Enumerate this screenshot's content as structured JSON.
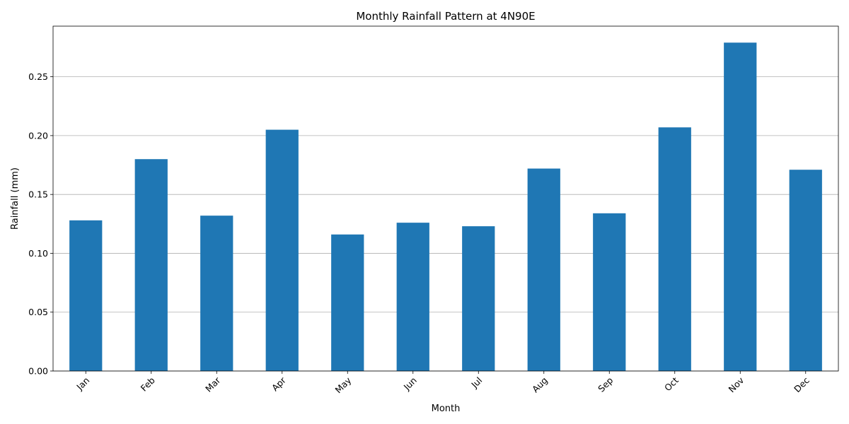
{
  "chart_data": {
    "type": "bar",
    "title": "Monthly Rainfall Pattern at 4N90E",
    "xlabel": "Month",
    "ylabel": "Rainfall (mm)",
    "categories": [
      "Jan",
      "Feb",
      "Mar",
      "Apr",
      "May",
      "Jun",
      "Jul",
      "Aug",
      "Sep",
      "Oct",
      "Nov",
      "Dec"
    ],
    "values": [
      0.128,
      0.18,
      0.132,
      0.205,
      0.116,
      0.126,
      0.123,
      0.172,
      0.134,
      0.207,
      0.279,
      0.171
    ],
    "ylim": [
      0,
      0.293
    ],
    "yticks": [
      "0.00",
      "0.05",
      "0.10",
      "0.15",
      "0.20",
      "0.25"
    ],
    "ytick_values": [
      0,
      0.05,
      0.1,
      0.15,
      0.2,
      0.25
    ],
    "grid": "y-axis",
    "bar_color": "#1f77b4",
    "grid_color": "#b0b0b0"
  }
}
